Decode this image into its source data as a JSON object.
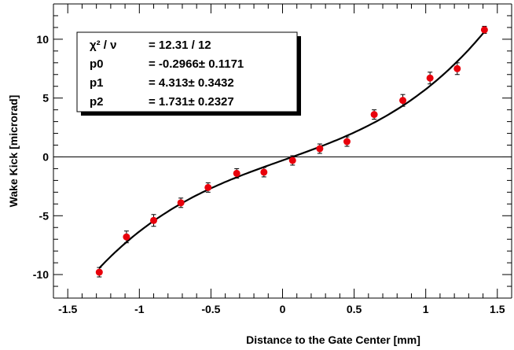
{
  "chart_data": {
    "type": "scatter",
    "xlabel": "Distance to the Gate Center  [mm]",
    "ylabel": "Wake Kick  [microrad]",
    "xlim": [
      -1.6,
      1.6
    ],
    "ylim": [
      -12,
      13
    ],
    "xticks": [
      -1.5,
      -1,
      -0.5,
      0,
      0.5,
      1,
      1.5
    ],
    "xtick_labels": [
      "-1.5",
      "-1",
      "-0.5",
      "0",
      "0.5",
      "1",
      "1.5"
    ],
    "yticks": [
      -10,
      -5,
      0,
      5,
      10
    ],
    "ytick_labels": [
      "-10",
      "-5",
      "0",
      "5",
      "10"
    ],
    "zero_line": true,
    "grid": false,
    "marker_color": "#e8000b",
    "fit_color": "#000000",
    "points": [
      {
        "x": -1.28,
        "y": -9.8,
        "err": 0.4
      },
      {
        "x": -1.09,
        "y": -6.8,
        "err": 0.5
      },
      {
        "x": -0.9,
        "y": -5.4,
        "err": 0.5
      },
      {
        "x": -0.71,
        "y": -3.9,
        "err": 0.4
      },
      {
        "x": -0.52,
        "y": -2.6,
        "err": 0.4
      },
      {
        "x": -0.32,
        "y": -1.4,
        "err": 0.4
      },
      {
        "x": -0.13,
        "y": -1.3,
        "err": 0.4
      },
      {
        "x": 0.07,
        "y": -0.3,
        "err": 0.4
      },
      {
        "x": 0.26,
        "y": 0.7,
        "err": 0.4
      },
      {
        "x": 0.45,
        "y": 1.3,
        "err": 0.4
      },
      {
        "x": 0.64,
        "y": 3.6,
        "err": 0.4
      },
      {
        "x": 0.84,
        "y": 4.8,
        "err": 0.5
      },
      {
        "x": 1.03,
        "y": 6.7,
        "err": 0.5
      },
      {
        "x": 1.22,
        "y": 7.5,
        "err": 0.5
      },
      {
        "x": 1.41,
        "y": 10.8,
        "err": 0.3
      }
    ],
    "fit": {
      "p0": -0.2966,
      "p1": 4.313,
      "p2": 1.731,
      "x_range": [
        -1.28,
        1.41
      ]
    },
    "stats_box": [
      {
        "label": "χ² / ν",
        "value": "= 12.31 / 12"
      },
      {
        "label": "p0",
        "value": "= -0.2966± 0.1171"
      },
      {
        "label": "p1",
        "value": "= 4.313± 0.3432"
      },
      {
        "label": "p2",
        "value": "= 1.731± 0.2327"
      }
    ]
  }
}
